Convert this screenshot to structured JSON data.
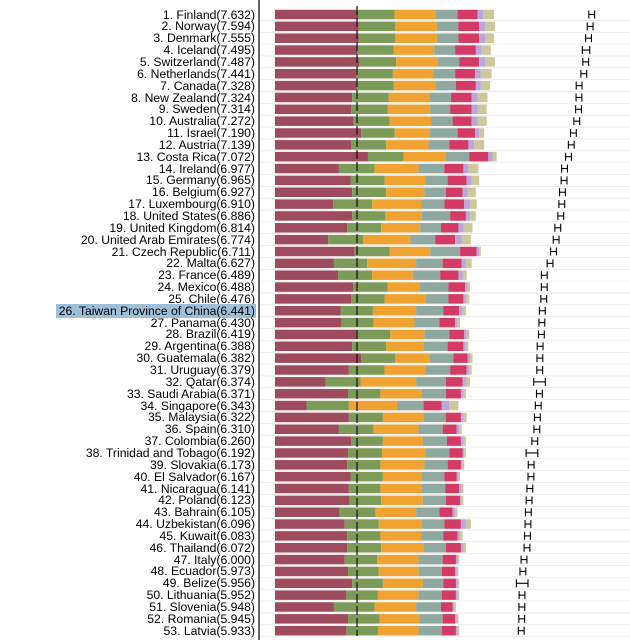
{
  "chart_data": {
    "type": "bar",
    "orientation": "horizontal-stacked",
    "highlight_index": 25,
    "highlight_color": "#9dbfd8",
    "components": [
      {
        "color": "#9e4b5e"
      },
      {
        "color": "#7c9a58"
      },
      {
        "color": "#f0a330"
      },
      {
        "color": "#8fa8a0"
      },
      {
        "color": "#d33a64"
      },
      {
        "color": "#b7a6e0"
      },
      {
        "color": "#cfc79c"
      }
    ],
    "reference_line": {
      "color": "#111111"
    },
    "labels": [
      "1. Finland(7.632)",
      "2. Norway(7.594)",
      "3. Denmark(7.555)",
      "4. Iceland(7.495)",
      "5. Switzerland(7.487)",
      "6. Netherlands(7.441)",
      "7. Canada(7.328)",
      "8. New Zealand(7.324)",
      "9. Sweden(7.314)",
      "10. Australia(7.272)",
      "11. Israel(7.190)",
      "12. Austria(7.139)",
      "13. Costa Rica(7.072)",
      "14. Ireland(6.977)",
      "15. Germany(6.965)",
      "16. Belgium(6.927)",
      "17. Luxembourg(6.910)",
      "18. United States(6.886)",
      "19. United Kingdom(6.814)",
      "20. United Arab Emirates(6.774)",
      "21. Czech Republic(6.711)",
      "22. Malta(6.627)",
      "23. France(6.489)",
      "24. Mexico(6.488)",
      "25. Chile(6.476)",
      "26. Taiwan Province of China(6.441)",
      "27. Panama(6.430)",
      "28. Brazil(6.419)",
      "29. Argentina(6.388)",
      "30. Guatemala(6.382)",
      "31. Uruguay(6.379)",
      "32. Qatar(6.374)",
      "33. Saudi Arabia(6.371)",
      "34. Singapore(6.343)",
      "35. Malaysia(6.322)",
      "36. Spain(6.310)",
      "37. Colombia(6.260)",
      "38. Trinidad and Tobago(6.192)",
      "39. Slovakia(6.173)",
      "40. El Salvador(6.167)",
      "41. Nicaragua(6.141)",
      "42. Poland(6.123)",
      "43. Bahrain(6.105)",
      "44. Uzbekistan(6.096)",
      "45. Kuwait(6.083)",
      "46. Thailand(6.072)",
      "47. Italy(6.000)",
      "48. Ecuador(5.973)",
      "49. Belize(5.956)",
      "50. Lithuania(5.952)",
      "51. Slovenia(5.948)",
      "52. Romania(5.945)",
      "53. Latvia(5.933)"
    ],
    "scores": [
      7.632,
      7.594,
      7.555,
      7.495,
      7.487,
      7.441,
      7.328,
      7.324,
      7.314,
      7.272,
      7.19,
      7.139,
      7.072,
      6.977,
      6.965,
      6.927,
      6.91,
      6.886,
      6.814,
      6.774,
      6.711,
      6.627,
      6.489,
      6.488,
      6.476,
      6.441,
      6.43,
      6.419,
      6.388,
      6.382,
      6.379,
      6.374,
      6.371,
      6.343,
      6.322,
      6.31,
      6.26,
      6.192,
      6.173,
      6.167,
      6.141,
      6.123,
      6.105,
      6.096,
      6.083,
      6.072,
      6.0,
      5.973,
      5.956,
      5.952,
      5.948,
      5.945,
      5.933
    ],
    "segments": [
      [
        2.0,
        0.88,
        1.0,
        0.52,
        0.48,
        0.14,
        0.26
      ],
      [
        2.02,
        0.88,
        1.0,
        0.52,
        0.5,
        0.14,
        0.24
      ],
      [
        2.02,
        0.88,
        1.0,
        0.52,
        0.5,
        0.14,
        0.22
      ],
      [
        1.98,
        0.88,
        0.98,
        0.5,
        0.5,
        0.14,
        0.22
      ],
      [
        2.04,
        0.88,
        1.0,
        0.52,
        0.48,
        0.14,
        0.24
      ],
      [
        1.96,
        0.88,
        0.98,
        0.52,
        0.48,
        0.14,
        0.26
      ],
      [
        1.98,
        0.88,
        1.0,
        0.5,
        0.48,
        0.12,
        0.22
      ],
      [
        1.86,
        0.88,
        0.98,
        0.52,
        0.5,
        0.14,
        0.24
      ],
      [
        1.84,
        0.88,
        1.02,
        0.48,
        0.52,
        0.14,
        0.22
      ],
      [
        1.9,
        0.86,
        1.0,
        0.52,
        0.46,
        0.14,
        0.22
      ],
      [
        2.08,
        0.8,
        0.84,
        0.68,
        0.42,
        0.1,
        0.12
      ],
      [
        1.84,
        0.84,
        1.02,
        0.5,
        0.46,
        0.14,
        0.24
      ],
      [
        2.24,
        0.86,
        1.0,
        0.58,
        0.46,
        0.1,
        0.1
      ],
      [
        1.54,
        0.86,
        1.06,
        0.62,
        0.46,
        0.12,
        0.24
      ],
      [
        1.82,
        0.82,
        0.98,
        0.54,
        0.46,
        0.12,
        0.18
      ],
      [
        1.86,
        0.82,
        0.92,
        0.52,
        0.4,
        0.12,
        0.2
      ],
      [
        1.4,
        0.94,
        1.18,
        0.56,
        0.48,
        0.14,
        0.16
      ],
      [
        1.86,
        0.8,
        0.88,
        0.68,
        0.38,
        0.1,
        0.14
      ],
      [
        1.74,
        0.82,
        0.94,
        0.5,
        0.42,
        0.12,
        0.22
      ],
      [
        1.28,
        0.84,
        1.14,
        0.6,
        0.48,
        0.16,
        0.22
      ],
      [
        1.92,
        0.84,
        0.98,
        0.72,
        0.4,
        0.06,
        0.04
      ],
      [
        1.42,
        0.8,
        1.18,
        0.64,
        0.46,
        0.1,
        0.14
      ],
      [
        1.52,
        0.82,
        0.98,
        0.66,
        0.44,
        0.1,
        0.1
      ],
      [
        1.88,
        0.84,
        0.76,
        0.7,
        0.4,
        0.06,
        0.06
      ],
      [
        1.84,
        0.8,
        0.98,
        0.56,
        0.36,
        0.06,
        0.08
      ],
      [
        1.58,
        0.78,
        1.04,
        0.66,
        0.38,
        0.08,
        0.08
      ],
      [
        1.6,
        0.78,
        0.98,
        0.6,
        0.38,
        0.06,
        0.06
      ],
      [
        1.96,
        0.82,
        0.82,
        0.6,
        0.36,
        0.06,
        0.06
      ],
      [
        1.86,
        0.82,
        0.9,
        0.58,
        0.38,
        0.06,
        0.06
      ],
      [
        2.08,
        0.82,
        0.82,
        0.58,
        0.34,
        0.06,
        0.06
      ],
      [
        1.78,
        0.86,
        0.98,
        0.6,
        0.4,
        0.06,
        0.06
      ],
      [
        1.22,
        0.84,
        1.34,
        0.72,
        0.4,
        0.08,
        0.1
      ],
      [
        1.76,
        0.78,
        1.0,
        0.58,
        0.36,
        0.06,
        0.06
      ],
      [
        0.76,
        1.02,
        1.16,
        0.64,
        0.44,
        0.18,
        0.22
      ],
      [
        1.78,
        0.82,
        0.98,
        0.54,
        0.36,
        0.06,
        0.08
      ],
      [
        1.54,
        0.84,
        1.08,
        0.58,
        0.34,
        0.06,
        0.06
      ],
      [
        1.84,
        0.76,
        0.96,
        0.58,
        0.34,
        0.06,
        0.06
      ],
      [
        1.76,
        0.82,
        1.04,
        0.58,
        0.32,
        0.04,
        0.04
      ],
      [
        1.74,
        0.8,
        1.06,
        0.56,
        0.32,
        0.04,
        0.04
      ],
      [
        1.82,
        0.78,
        0.94,
        0.54,
        0.3,
        0.04,
        0.04
      ],
      [
        1.78,
        0.76,
        1.0,
        0.56,
        0.34,
        0.06,
        0.04
      ],
      [
        1.8,
        0.76,
        1.0,
        0.56,
        0.34,
        0.04,
        0.04
      ],
      [
        1.56,
        0.86,
        0.98,
        0.56,
        0.32,
        0.06,
        0.06
      ],
      [
        1.68,
        0.82,
        1.04,
        0.54,
        0.4,
        0.12,
        0.12
      ],
      [
        1.74,
        0.8,
        0.98,
        0.54,
        0.34,
        0.06,
        0.06
      ],
      [
        1.74,
        0.82,
        1.02,
        0.54,
        0.36,
        0.06,
        0.06
      ],
      [
        1.68,
        0.78,
        1.0,
        0.58,
        0.32,
        0.04,
        0.04
      ],
      [
        1.76,
        0.74,
        0.96,
        0.56,
        0.32,
        0.04,
        0.04
      ],
      [
        1.86,
        0.74,
        0.96,
        0.5,
        0.3,
        0.04,
        0.04
      ],
      [
        1.72,
        0.76,
        0.98,
        0.56,
        0.34,
        0.04,
        0.04
      ],
      [
        1.42,
        0.98,
        1.0,
        0.6,
        0.28,
        0.04,
        0.04
      ],
      [
        1.76,
        0.76,
        0.96,
        0.56,
        0.3,
        0.04,
        0.04
      ],
      [
        1.72,
        0.76,
        0.98,
        0.56,
        0.34,
        0.04,
        0.04
      ]
    ],
    "error_margins": [
      0.07,
      0.07,
      0.07,
      0.09,
      0.07,
      0.07,
      0.07,
      0.07,
      0.07,
      0.07,
      0.07,
      0.07,
      0.07,
      0.07,
      0.07,
      0.07,
      0.07,
      0.07,
      0.07,
      0.07,
      0.07,
      0.07,
      0.07,
      0.07,
      0.07,
      0.07,
      0.07,
      0.07,
      0.07,
      0.07,
      0.07,
      0.14,
      0.07,
      0.07,
      0.07,
      0.07,
      0.07,
      0.14,
      0.07,
      0.07,
      0.07,
      0.07,
      0.07,
      0.07,
      0.07,
      0.07,
      0.07,
      0.07,
      0.14,
      0.07,
      0.07,
      0.07,
      0.07
    ]
  }
}
